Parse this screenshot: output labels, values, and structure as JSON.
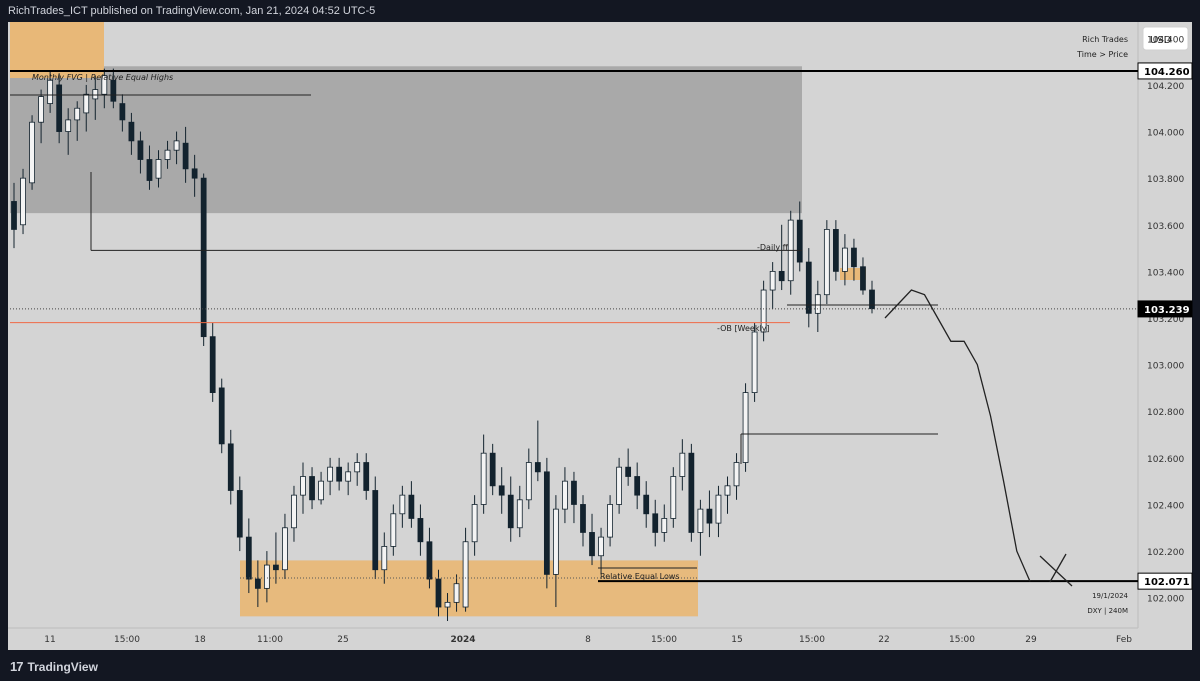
{
  "header": {
    "published": "RichTrades_ICT published on TradingView.com, Jan 21, 2024 04:52 UTC-5"
  },
  "footer": {
    "logo_text": "TradingView"
  },
  "legend": {
    "author": "Rich Trades",
    "mode": "Time > Price",
    "currency_button": "USD"
  },
  "watermark": {
    "date": "19/1/2024",
    "symbol_tf": "DXY | 240M"
  },
  "colors": {
    "background": "#d4d4d4",
    "fvg_zone": "#a9a9a9",
    "orange_zone": "#e8b878",
    "candle": "#13232e",
    "red_line": "#ef6a46",
    "frame": "#131722"
  },
  "chart_data": {
    "type": "candlestick",
    "title": "",
    "ylim": [
      101.87,
      104.47
    ],
    "y_ticks": [
      "104.400",
      "104.200",
      "104.000",
      "103.800",
      "103.600",
      "103.400",
      "103.200",
      "103.000",
      "102.800",
      "102.600",
      "102.400",
      "102.200",
      "102.000"
    ],
    "x_ticks": [
      "11",
      "15:00",
      "18",
      "11:00",
      "25",
      "2024",
      "8",
      "15:00",
      "15",
      "15:00",
      "22",
      "15:00",
      "29",
      "Feb"
    ],
    "price_labels": [
      {
        "value": "104.260",
        "highlight": false
      },
      {
        "value": "103.239",
        "highlight": true
      },
      {
        "value": "102.071",
        "highlight": false
      }
    ],
    "annotations": {
      "fvg_label": "Monthly FVG | Relative Equal Highs",
      "daily_label": "-Daily ff",
      "ob_label": "-OB [Weekly]",
      "lows_label": "Relative Equal Lows"
    },
    "zones": {
      "fvg": [
        103.65,
        104.28
      ],
      "demand": [
        101.92,
        102.16
      ]
    },
    "levels": {
      "top": 104.26,
      "daily": 103.49,
      "red": 103.18,
      "dotted": 103.239,
      "bottom": 102.071
    },
    "projection": {
      "path": [
        103.2,
        103.26,
        103.32,
        103.3,
        103.2,
        103.1,
        103.1,
        103.0,
        102.78,
        102.5,
        102.2,
        102.07
      ],
      "target": 102.071
    },
    "ohlc": [
      [
        103.7,
        103.78,
        103.5,
        103.58
      ],
      [
        103.6,
        103.84,
        103.56,
        103.8
      ],
      [
        103.78,
        104.07,
        103.75,
        104.04
      ],
      [
        104.04,
        104.18,
        103.95,
        104.15
      ],
      [
        104.12,
        104.26,
        104.08,
        104.22
      ],
      [
        104.2,
        104.25,
        103.95,
        104.0
      ],
      [
        104.0,
        104.1,
        103.9,
        104.05
      ],
      [
        104.05,
        104.13,
        103.96,
        104.1
      ],
      [
        104.08,
        104.2,
        104.0,
        104.16
      ],
      [
        104.14,
        104.24,
        104.05,
        104.18
      ],
      [
        104.16,
        104.27,
        104.1,
        104.24
      ],
      [
        104.22,
        104.27,
        104.1,
        104.13
      ],
      [
        104.12,
        104.16,
        104.0,
        104.05
      ],
      [
        104.04,
        104.08,
        103.9,
        103.96
      ],
      [
        103.96,
        104.0,
        103.82,
        103.88
      ],
      [
        103.88,
        103.94,
        103.75,
        103.79
      ],
      [
        103.8,
        103.92,
        103.76,
        103.88
      ],
      [
        103.88,
        103.96,
        103.84,
        103.92
      ],
      [
        103.92,
        104.0,
        103.86,
        103.96
      ],
      [
        103.95,
        104.02,
        103.78,
        103.84
      ],
      [
        103.84,
        103.9,
        103.72,
        103.8
      ],
      [
        103.8,
        103.82,
        103.08,
        103.12
      ],
      [
        103.12,
        103.18,
        102.84,
        102.88
      ],
      [
        102.9,
        102.94,
        102.62,
        102.66
      ],
      [
        102.66,
        102.72,
        102.4,
        102.46
      ],
      [
        102.46,
        102.52,
        102.2,
        102.26
      ],
      [
        102.26,
        102.34,
        102.02,
        102.08
      ],
      [
        102.08,
        102.16,
        101.96,
        102.04
      ],
      [
        102.04,
        102.2,
        101.98,
        102.14
      ],
      [
        102.14,
        102.28,
        102.06,
        102.12
      ],
      [
        102.12,
        102.36,
        102.08,
        102.3
      ],
      [
        102.3,
        102.48,
        102.24,
        102.44
      ],
      [
        102.44,
        102.58,
        102.36,
        102.52
      ],
      [
        102.52,
        102.56,
        102.38,
        102.42
      ],
      [
        102.42,
        102.54,
        102.4,
        102.5
      ],
      [
        102.5,
        102.6,
        102.44,
        102.56
      ],
      [
        102.56,
        102.6,
        102.46,
        102.5
      ],
      [
        102.5,
        102.58,
        102.44,
        102.54
      ],
      [
        102.54,
        102.62,
        102.48,
        102.58
      ],
      [
        102.58,
        102.62,
        102.42,
        102.46
      ],
      [
        102.46,
        102.52,
        102.08,
        102.12
      ],
      [
        102.12,
        102.28,
        102.06,
        102.22
      ],
      [
        102.22,
        102.4,
        102.18,
        102.36
      ],
      [
        102.36,
        102.48,
        102.3,
        102.44
      ],
      [
        102.44,
        102.5,
        102.3,
        102.34
      ],
      [
        102.34,
        102.4,
        102.18,
        102.24
      ],
      [
        102.24,
        102.3,
        102.04,
        102.08
      ],
      [
        102.08,
        102.12,
        101.92,
        101.96
      ],
      [
        101.96,
        102.02,
        101.9,
        101.98
      ],
      [
        101.98,
        102.1,
        101.94,
        102.06
      ],
      [
        101.96,
        102.3,
        101.94,
        102.24
      ],
      [
        102.24,
        102.44,
        102.18,
        102.4
      ],
      [
        102.4,
        102.7,
        102.36,
        102.62
      ],
      [
        102.62,
        102.66,
        102.44,
        102.48
      ],
      [
        102.48,
        102.56,
        102.36,
        102.44
      ],
      [
        102.44,
        102.52,
        102.24,
        102.3
      ],
      [
        102.3,
        102.48,
        102.26,
        102.42
      ],
      [
        102.42,
        102.64,
        102.38,
        102.58
      ],
      [
        102.58,
        102.76,
        102.5,
        102.54
      ],
      [
        102.54,
        102.6,
        102.04,
        102.1
      ],
      [
        102.1,
        102.44,
        101.96,
        102.38
      ],
      [
        102.38,
        102.56,
        102.32,
        102.5
      ],
      [
        102.5,
        102.54,
        102.32,
        102.4
      ],
      [
        102.4,
        102.44,
        102.22,
        102.28
      ],
      [
        102.28,
        102.36,
        102.14,
        102.18
      ],
      [
        102.18,
        102.3,
        102.1,
        102.26
      ],
      [
        102.26,
        102.44,
        102.22,
        102.4
      ],
      [
        102.4,
        102.6,
        102.36,
        102.56
      ],
      [
        102.56,
        102.64,
        102.48,
        102.52
      ],
      [
        102.52,
        102.58,
        102.38,
        102.44
      ],
      [
        102.44,
        102.5,
        102.3,
        102.36
      ],
      [
        102.36,
        102.42,
        102.22,
        102.28
      ],
      [
        102.28,
        102.4,
        102.24,
        102.34
      ],
      [
        102.34,
        102.56,
        102.3,
        102.52
      ],
      [
        102.52,
        102.68,
        102.46,
        102.62
      ],
      [
        102.62,
        102.66,
        102.24,
        102.28
      ],
      [
        102.28,
        102.42,
        102.18,
        102.38
      ],
      [
        102.38,
        102.46,
        102.26,
        102.32
      ],
      [
        102.32,
        102.48,
        102.26,
        102.44
      ],
      [
        102.44,
        102.52,
        102.36,
        102.48
      ],
      [
        102.48,
        102.62,
        102.42,
        102.58
      ],
      [
        102.58,
        102.92,
        102.54,
        102.88
      ],
      [
        102.88,
        103.18,
        102.84,
        103.14
      ],
      [
        103.14,
        103.36,
        103.1,
        103.32
      ],
      [
        103.32,
        103.44,
        103.24,
        103.4
      ],
      [
        103.4,
        103.6,
        103.32,
        103.36
      ],
      [
        103.36,
        103.66,
        103.3,
        103.62
      ],
      [
        103.62,
        103.7,
        103.4,
        103.44
      ],
      [
        103.44,
        103.5,
        103.16,
        103.22
      ],
      [
        103.22,
        103.36,
        103.14,
        103.3
      ],
      [
        103.3,
        103.62,
        103.26,
        103.58
      ],
      [
        103.58,
        103.62,
        103.36,
        103.4
      ],
      [
        103.4,
        103.56,
        103.34,
        103.5
      ],
      [
        103.5,
        103.54,
        103.36,
        103.42
      ],
      [
        103.42,
        103.46,
        103.3,
        103.32
      ],
      [
        103.32,
        103.36,
        103.22,
        103.24
      ]
    ]
  }
}
